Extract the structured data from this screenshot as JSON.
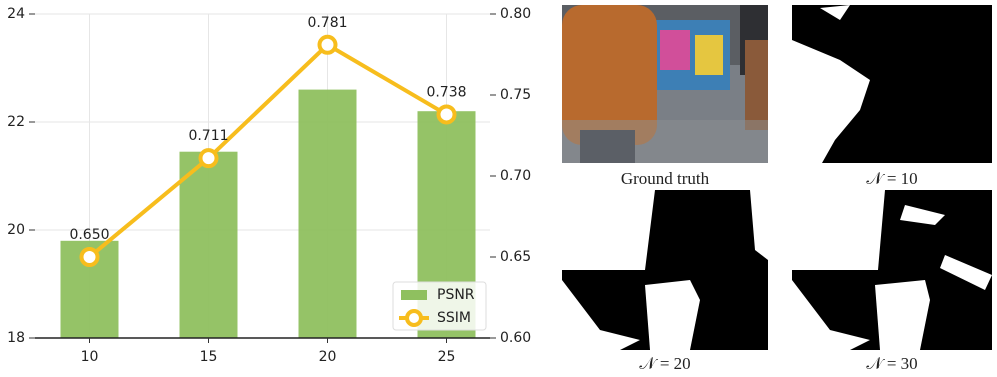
{
  "chart_data": {
    "type": "bar",
    "categories": [
      "10",
      "15",
      "20",
      "25"
    ],
    "series": [
      {
        "name": "PSNR",
        "type": "bar",
        "color": "#8fc05f",
        "values": [
          19.8,
          21.45,
          22.6,
          22.2
        ]
      },
      {
        "name": "SSIM",
        "type": "line",
        "axis": "y2",
        "color": "#f7bd1d",
        "values": [
          0.65,
          0.711,
          0.781,
          0.738
        ],
        "value_labels": [
          "0.650",
          "0.711",
          "0.781",
          "0.738"
        ]
      }
    ],
    "ylim": [
      18,
      24
    ],
    "yticks": [
      18,
      20,
      22,
      24
    ],
    "y2lim": [
      0.6,
      0.8
    ],
    "y2ticks": [
      {
        "value": 0.6,
        "label": "0.60"
      },
      0.65,
      {
        "value": 0.7,
        "label": "0.70"
      },
      0.75,
      {
        "value": 0.8,
        "label": "0.80"
      }
    ],
    "grid": true,
    "legend": "lower right"
  },
  "panels": [
    {
      "caption": "Ground truth"
    },
    {
      "caption": "𝒩 = 10"
    },
    {
      "caption": "𝒩 = 20"
    },
    {
      "caption": "𝒩 = 30"
    }
  ]
}
